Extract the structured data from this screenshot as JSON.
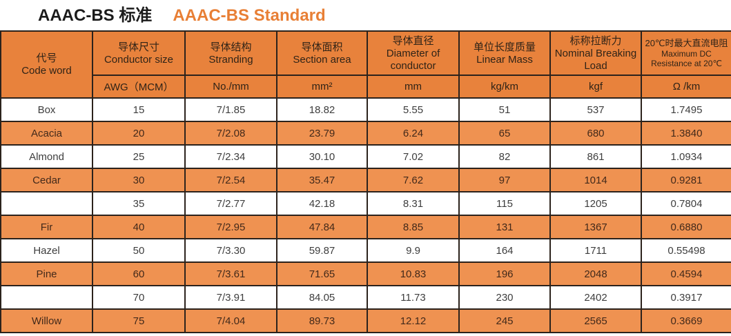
{
  "title": {
    "cn": "AAAC-BS 标准",
    "en": "AAAC-BS Standard"
  },
  "colors": {
    "header_orange": "#e8823c",
    "highlight_row_orange": "#ef9251",
    "title_orange": "#e87f35",
    "border": "#2b221c"
  },
  "table": {
    "field_names": [
      "code-word",
      "conductor-size",
      "stranding",
      "section-area",
      "diameter",
      "linear-mass",
      "breaking-load",
      "resistance"
    ],
    "columns": [
      {
        "cn": "代号",
        "en": "Code word",
        "unit": ""
      },
      {
        "cn": "导体尺寸",
        "en": "Conductor size",
        "unit": "AWG（MCM）"
      },
      {
        "cn": "导体结构",
        "en": "Stranding",
        "unit": "No./mm"
      },
      {
        "cn": "导体面积",
        "en": "Section area",
        "unit": "mm²"
      },
      {
        "cn": "导体直径",
        "en": "Diameter of conductor",
        "unit": "mm"
      },
      {
        "cn": "单位长度质量",
        "en": "Linear Mass",
        "unit": "kg/km"
      },
      {
        "cn": "标称拉断力",
        "en": "Nominal Breaking Load",
        "unit": "kgf"
      },
      {
        "cn": "20℃时最大直流电阻",
        "en": "Maximum DC Resistance at 20℃",
        "unit": "Ω /km"
      }
    ],
    "rows": [
      {
        "highlighted": false,
        "cells": [
          "Box",
          "15",
          "7/1.85",
          "18.82",
          "5.55",
          "51",
          "537",
          "1.7495"
        ]
      },
      {
        "highlighted": true,
        "cells": [
          "Acacia",
          "20",
          "7/2.08",
          "23.79",
          "6.24",
          "65",
          "680",
          "1.3840"
        ]
      },
      {
        "highlighted": false,
        "cells": [
          "Almond",
          "25",
          "7/2.34",
          "30.10",
          "7.02",
          "82",
          "861",
          "1.0934"
        ]
      },
      {
        "highlighted": true,
        "cells": [
          "Cedar",
          "30",
          "7/2.54",
          "35.47",
          "7.62",
          "97",
          "1014",
          "0.9281"
        ]
      },
      {
        "highlighted": false,
        "cells": [
          "",
          "35",
          "7/2.77",
          "42.18",
          "8.31",
          "115",
          "1205",
          "0.7804"
        ]
      },
      {
        "highlighted": true,
        "cells": [
          "Fir",
          "40",
          "7/2.95",
          "47.84",
          "8.85",
          "131",
          "1367",
          "0.6880"
        ]
      },
      {
        "highlighted": false,
        "cells": [
          "Hazel",
          "50",
          "7/3.30",
          "59.87",
          "9.9",
          "164",
          "1711",
          "0.55498"
        ]
      },
      {
        "highlighted": true,
        "cells": [
          "Pine",
          "60",
          "7/3.61",
          "71.65",
          "10.83",
          "196",
          "2048",
          "0.4594"
        ]
      },
      {
        "highlighted": false,
        "cells": [
          "",
          "70",
          "7/3.91",
          "84.05",
          "11.73",
          "230",
          "2402",
          "0.3917"
        ]
      },
      {
        "highlighted": true,
        "cells": [
          "Willow",
          "75",
          "7/4.04",
          "89.73",
          "12.12",
          "245",
          "2565",
          "0.3669"
        ]
      }
    ]
  }
}
